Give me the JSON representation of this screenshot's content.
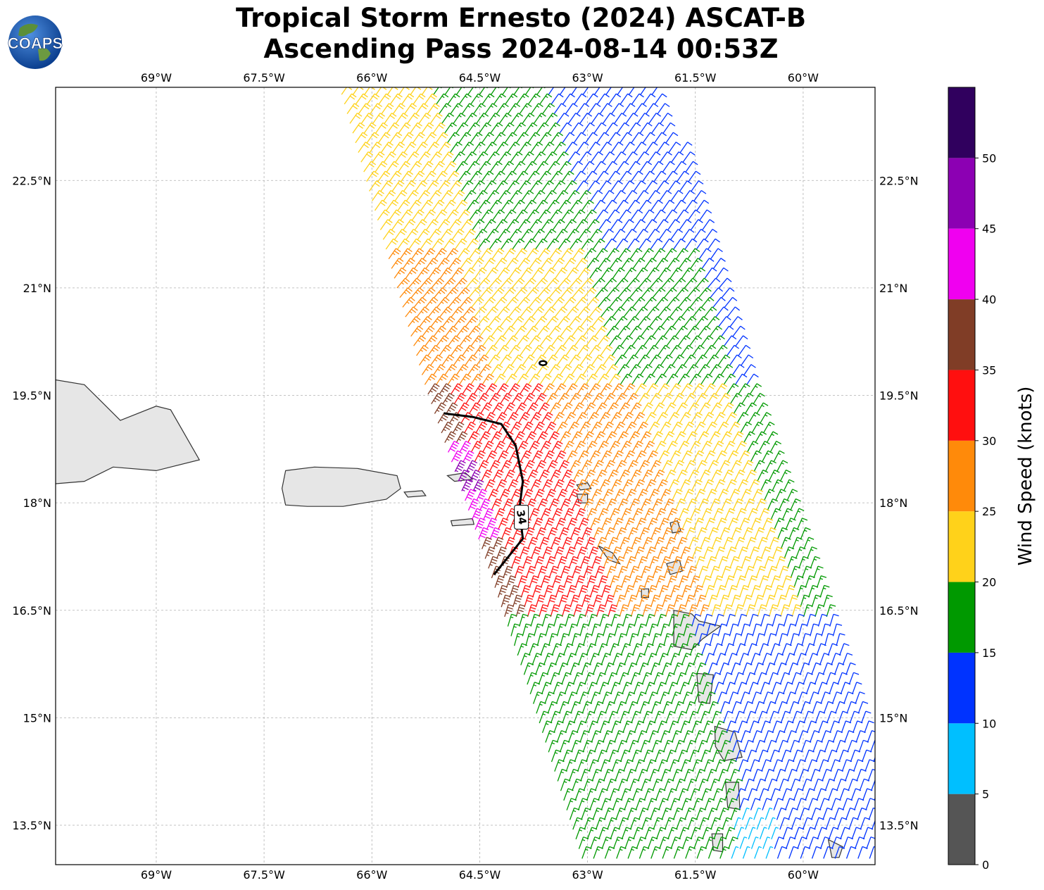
{
  "header": {
    "logo_text": "COAPS",
    "title_line1": "Tropical Storm Ernesto (2024) ASCAT-B",
    "title_line2": "Ascending Pass 2024-08-14 00:53Z"
  },
  "map": {
    "projection": "plate carree",
    "lon_range": [
      -70.4,
      -59.0
    ],
    "lat_range": [
      12.95,
      23.8
    ],
    "lon_ticks": [
      {
        "value": -69.0,
        "label": "69°W"
      },
      {
        "value": -67.5,
        "label": "67.5°W"
      },
      {
        "value": -66.0,
        "label": "66°W"
      },
      {
        "value": -64.5,
        "label": "64.5°W"
      },
      {
        "value": -63.0,
        "label": "63°W"
      },
      {
        "value": -61.5,
        "label": "61.5°W"
      },
      {
        "value": -60.0,
        "label": "60°W"
      }
    ],
    "lat_ticks": [
      {
        "value": 22.5,
        "label": "22.5°N"
      },
      {
        "value": 21.0,
        "label": "21°N"
      },
      {
        "value": 19.5,
        "label": "19.5°N"
      },
      {
        "value": 18.0,
        "label": "18°N"
      },
      {
        "value": 16.5,
        "label": "16.5°N"
      },
      {
        "value": 15.0,
        "label": "15°N"
      },
      {
        "value": 13.5,
        "label": "13.5°N"
      }
    ],
    "grid": true,
    "land_color": "#e6e6e6",
    "coastline_color": "#333333",
    "wind_field": {
      "type": "wind barbs",
      "units": "knots",
      "swath_edges": {
        "west": [
          [
            -66.5,
            23.8
          ],
          [
            -65.3,
            19.6
          ],
          [
            -64.5,
            17.3
          ],
          [
            -63.9,
            15.5
          ],
          [
            -63.1,
            12.95
          ]
        ],
        "east": [
          [
            -62.0,
            23.8
          ],
          [
            -60.9,
            20.4
          ],
          [
            -60.0,
            17.8
          ],
          [
            -59.4,
            15.9
          ],
          [
            -59.0,
            14.5
          ]
        ]
      },
      "speed_zones": [
        {
          "range": "0-5",
          "region": "none observed"
        },
        {
          "range": "5-10",
          "region": "far south-east corner near 60.8°W 13.3°N"
        },
        {
          "range": "10-15",
          "region": "north-east and south-east edges of swath"
        },
        {
          "range": "15-20",
          "region": "east-central and southern parts of swath"
        },
        {
          "range": "20-25",
          "region": "central band and north-west edge"
        },
        {
          "range": "25-30",
          "region": "band west of center from 21°N to 16°N"
        },
        {
          "range": "30-35",
          "region": "west edge 16.5°N to 19.2°N"
        },
        {
          "range": "35-40",
          "region": "around 64.5°W, 17°N to 19°N"
        },
        {
          "range": "40-45",
          "region": "west edge near 65°W, 17.5°N to 18.5°N"
        },
        {
          "range": "45-50",
          "region": "small pocket near 64.8°W 18.4°N"
        }
      ]
    },
    "contour": {
      "level_label": "34",
      "color": "#000000",
      "path": [
        [
          -65.0,
          19.25
        ],
        [
          -64.6,
          19.2
        ],
        [
          -64.2,
          19.1
        ],
        [
          -64.0,
          18.8
        ],
        [
          -63.9,
          18.3
        ],
        [
          -63.95,
          17.9
        ],
        [
          -63.9,
          17.5
        ],
        [
          -64.1,
          17.25
        ],
        [
          -64.3,
          17.0
        ]
      ],
      "small_loop": [
        -63.62,
        19.95
      ]
    }
  },
  "colorbar": {
    "label": "Wind Speed (knots)",
    "ticks": [
      "0",
      "5",
      "10",
      "15",
      "20",
      "25",
      "30",
      "35",
      "40",
      "45",
      "50"
    ],
    "bins": [
      {
        "from": 0,
        "to": 5,
        "color": "#555555"
      },
      {
        "from": 5,
        "to": 10,
        "color": "#00bfff"
      },
      {
        "from": 10,
        "to": 15,
        "color": "#0033ff"
      },
      {
        "from": 15,
        "to": 20,
        "color": "#009900"
      },
      {
        "from": 20,
        "to": 25,
        "color": "#ffd21a"
      },
      {
        "from": 25,
        "to": 30,
        "color": "#ff8a0a"
      },
      {
        "from": 30,
        "to": 35,
        "color": "#ff0f0f"
      },
      {
        "from": 35,
        "to": 40,
        "color": "#803d26"
      },
      {
        "from": 40,
        "to": 45,
        "color": "#f000f0"
      },
      {
        "from": 45,
        "to": 50,
        "color": "#8c00b3"
      },
      {
        "from": 50,
        "to": 55,
        "color": "#30005e"
      }
    ]
  }
}
